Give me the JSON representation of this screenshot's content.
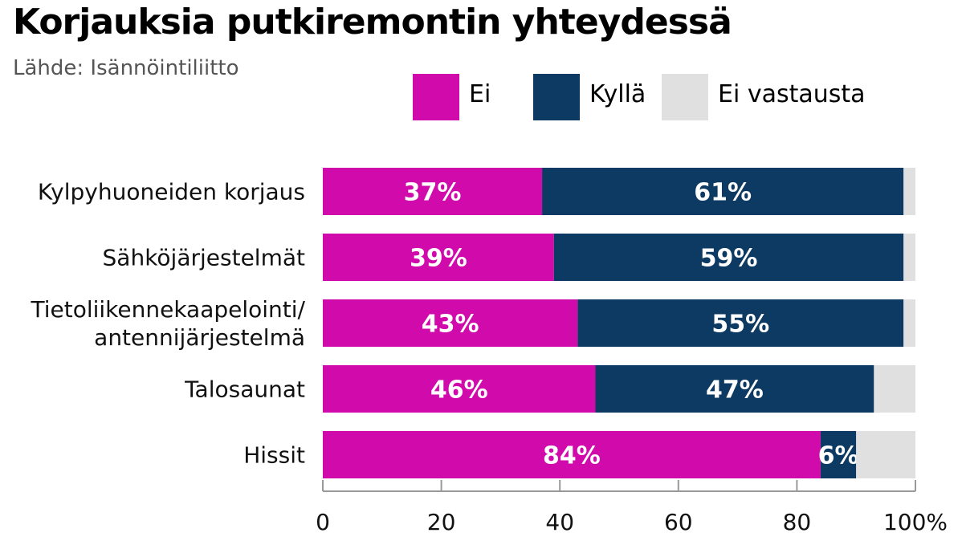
{
  "chart_data": {
    "type": "bar",
    "orientation": "horizontal",
    "stacked": true,
    "title": "Korjauksia putkiremontin yhteydessä",
    "subtitle": "Lähde: Isännöintiliitto",
    "categories": [
      [
        "Kylpyhuoneiden korjaus"
      ],
      [
        "Sähköjärjestelmät"
      ],
      [
        "Tietoliikennekaapelointi/",
        "antennijärjestelmä"
      ],
      [
        "Talosaunat"
      ],
      [
        "Hissit"
      ]
    ],
    "series": [
      {
        "name": "Ei",
        "color": "#d10aab",
        "values": [
          37,
          39,
          43,
          46,
          84
        ]
      },
      {
        "name": "Kyllä",
        "color": "#0d3a62",
        "values": [
          61,
          59,
          55,
          47,
          6
        ]
      },
      {
        "name": "Ei vastausta",
        "color": "#e0e0e0",
        "values": [
          2,
          2,
          2,
          7,
          10
        ]
      }
    ],
    "data_labels": [
      [
        "37%",
        "39%",
        "43%",
        "46%",
        "84%"
      ],
      [
        "61%",
        "59%",
        "55%",
        "47%",
        "6%"
      ]
    ],
    "xlim": [
      0,
      100
    ],
    "xticks": [
      "0",
      "20",
      "40",
      "60",
      "80",
      "100%"
    ],
    "xtick_values": [
      0,
      20,
      40,
      60,
      80,
      100
    ],
    "grid": false,
    "legend_position": "top-right"
  }
}
